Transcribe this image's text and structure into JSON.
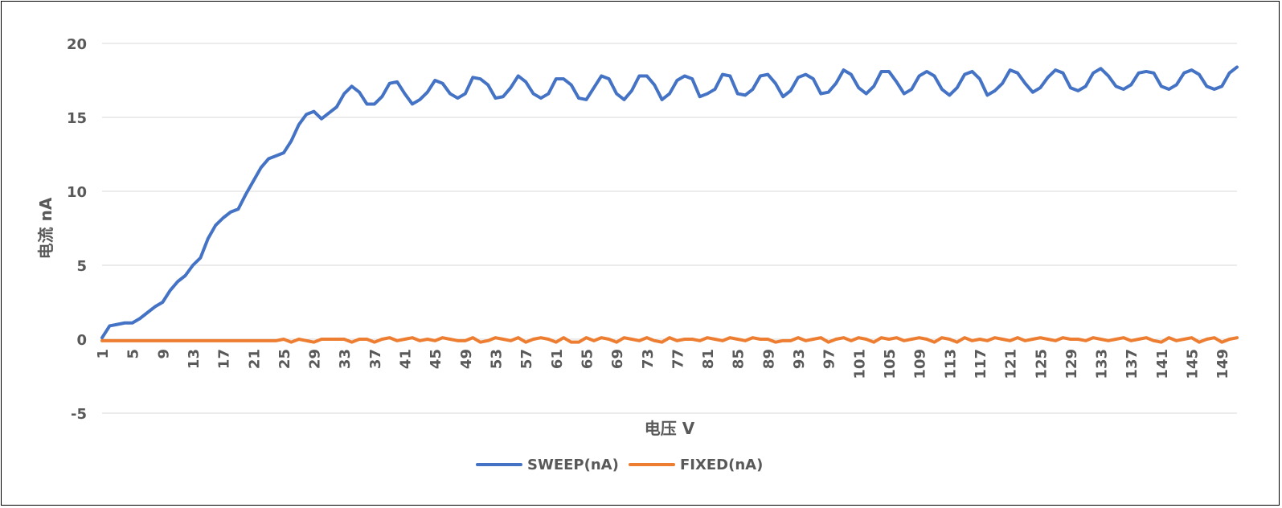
{
  "chart_data": {
    "type": "line",
    "title": "",
    "xlabel": "电压 V",
    "ylabel": "电流 nA",
    "ylim": [
      -5,
      20
    ],
    "yticks": [
      -5,
      0,
      5,
      10,
      15,
      20
    ],
    "x": [
      1,
      2,
      3,
      4,
      5,
      6,
      7,
      8,
      9,
      10,
      11,
      12,
      13,
      14,
      15,
      16,
      17,
      18,
      19,
      20,
      21,
      22,
      23,
      24,
      25,
      26,
      27,
      28,
      29,
      30,
      31,
      32,
      33,
      34,
      35,
      36,
      37,
      38,
      39,
      40,
      41,
      42,
      43,
      44,
      45,
      46,
      47,
      48,
      49,
      50,
      51,
      52,
      53,
      54,
      55,
      56,
      57,
      58,
      59,
      60,
      61,
      62,
      63,
      64,
      65,
      66,
      67,
      68,
      69,
      70,
      71,
      72,
      73,
      74,
      75,
      76,
      77,
      78,
      79,
      80,
      81,
      82,
      83,
      84,
      85,
      86,
      87,
      88,
      89,
      90,
      91,
      92,
      93,
      94,
      95,
      96,
      97,
      98,
      99,
      100,
      101,
      102,
      103,
      104,
      105,
      106,
      107,
      108,
      109,
      110,
      111,
      112,
      113,
      114,
      115,
      116,
      117,
      118,
      119,
      120,
      121,
      122,
      123,
      124,
      125,
      126,
      127,
      128,
      129,
      130,
      131,
      132,
      133,
      134,
      135,
      136,
      137,
      138,
      139,
      140,
      141,
      142,
      143,
      144,
      145,
      146,
      147,
      148,
      149,
      150,
      151
    ],
    "xtick_labels": [
      "1",
      "5",
      "9",
      "13",
      "17",
      "21",
      "25",
      "29",
      "33",
      "37",
      "41",
      "45",
      "49",
      "53",
      "57",
      "61",
      "65",
      "69",
      "73",
      "77",
      "81",
      "85",
      "89",
      "93",
      "97",
      "101",
      "105",
      "109",
      "113",
      "117",
      "121",
      "125",
      "129",
      "133",
      "137",
      "141",
      "145",
      "149"
    ],
    "grid": true,
    "legend": "bottom",
    "series": [
      {
        "name": "SWEEP(nA)",
        "color": "#4472C4",
        "values": [
          0.1,
          0.9,
          1.0,
          1.1,
          1.1,
          1.4,
          1.8,
          2.2,
          2.5,
          3.3,
          3.9,
          4.3,
          5.0,
          5.5,
          6.8,
          7.7,
          8.2,
          8.6,
          8.8,
          9.8,
          10.7,
          11.6,
          12.2,
          12.4,
          12.6,
          13.4,
          14.5,
          15.2,
          15.4,
          14.9,
          15.3,
          15.7,
          16.6,
          17.1,
          16.7,
          15.9,
          15.9,
          16.4,
          17.3,
          17.4,
          16.6,
          15.9,
          16.2,
          16.7,
          17.5,
          17.3,
          16.6,
          16.3,
          16.6,
          17.7,
          17.6,
          17.2,
          16.3,
          16.4,
          17.0,
          17.8,
          17.4,
          16.6,
          16.3,
          16.6,
          17.6,
          17.6,
          17.2,
          16.3,
          16.2,
          17.0,
          17.8,
          17.6,
          16.6,
          16.2,
          16.8,
          17.8,
          17.8,
          17.2,
          16.2,
          16.6,
          17.5,
          17.8,
          17.6,
          16.4,
          16.6,
          16.9,
          17.9,
          17.8,
          16.6,
          16.5,
          16.9,
          17.8,
          17.9,
          17.3,
          16.4,
          16.8,
          17.7,
          17.9,
          17.6,
          16.6,
          16.7,
          17.3,
          18.2,
          17.9,
          17.0,
          16.6,
          17.1,
          18.1,
          18.1,
          17.4,
          16.6,
          16.9,
          17.8,
          18.1,
          17.8,
          16.9,
          16.5,
          17.0,
          17.9,
          18.1,
          17.6,
          16.5,
          16.8,
          17.3,
          18.2,
          18.0,
          17.3,
          16.7,
          17.0,
          17.7,
          18.2,
          18.0,
          17.0,
          16.8,
          17.1,
          18.0,
          18.3,
          17.8,
          17.1,
          16.9,
          17.2,
          18.0,
          18.1,
          18.0,
          17.1,
          16.9,
          17.2,
          18.0,
          18.2,
          17.9,
          17.1,
          16.9,
          17.1,
          18.0,
          18.4
        ]
      },
      {
        "name": "FIXED(nA)",
        "color": "#ED7D31",
        "values": [
          -0.1,
          -0.1,
          -0.1,
          -0.1,
          -0.1,
          -0.1,
          -0.1,
          -0.1,
          -0.1,
          -0.1,
          -0.1,
          -0.1,
          -0.1,
          -0.1,
          -0.1,
          -0.1,
          -0.1,
          -0.1,
          -0.1,
          -0.1,
          -0.1,
          -0.1,
          -0.1,
          -0.1,
          0.0,
          -0.2,
          0.0,
          -0.1,
          -0.2,
          0.0,
          0.0,
          0.0,
          0.0,
          -0.2,
          0.0,
          0.0,
          -0.2,
          0.0,
          0.1,
          -0.1,
          0.0,
          0.1,
          -0.1,
          0.0,
          -0.1,
          0.1,
          0.0,
          -0.1,
          -0.1,
          0.1,
          -0.2,
          -0.1,
          0.1,
          0.0,
          -0.1,
          0.1,
          -0.2,
          0.0,
          0.1,
          0.0,
          -0.2,
          0.1,
          -0.2,
          -0.2,
          0.1,
          -0.1,
          0.1,
          0.0,
          -0.2,
          0.1,
          0.0,
          -0.1,
          0.1,
          -0.1,
          -0.2,
          0.1,
          -0.1,
          0.0,
          0.0,
          -0.1,
          0.1,
          0.0,
          -0.1,
          0.1,
          0.0,
          -0.1,
          0.1,
          0.0,
          0.0,
          -0.2,
          -0.1,
          -0.1,
          0.1,
          -0.1,
          0.0,
          0.1,
          -0.2,
          0.0,
          0.1,
          -0.1,
          0.1,
          0.0,
          -0.2,
          0.1,
          0.0,
          0.1,
          -0.1,
          0.0,
          0.1,
          0.0,
          -0.2,
          0.1,
          0.0,
          -0.2,
          0.1,
          -0.1,
          0.0,
          -0.1,
          0.1,
          0.0,
          -0.1,
          0.1,
          -0.1,
          0.0,
          0.1,
          0.0,
          -0.1,
          0.1,
          0.0,
          0.0,
          -0.1,
          0.1,
          0.0,
          -0.1,
          0.0,
          0.1,
          -0.1,
          0.0,
          0.1,
          -0.1,
          -0.2,
          0.1,
          -0.1,
          0.0,
          0.1,
          -0.2,
          0.0,
          0.1,
          -0.2,
          0.0,
          0.1
        ]
      }
    ]
  }
}
